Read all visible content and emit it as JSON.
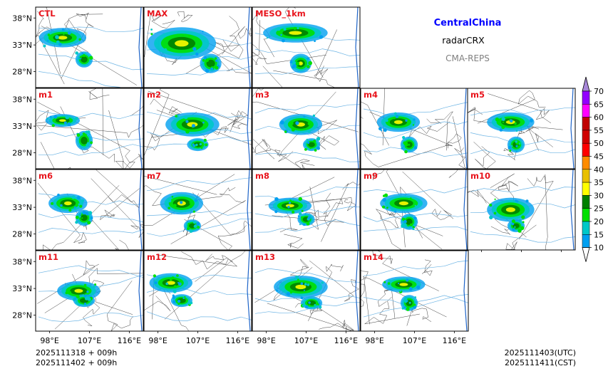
{
  "header": {
    "region": "CentralChina",
    "product": "radarCRX",
    "system": "CMA-REPS"
  },
  "footer": {
    "init_utc": "2025111318  +  009h",
    "init_cst": "2025111402  +  009h",
    "valid_utc": "2025111403(UTC)",
    "valid_cst": "2025111411(CST)"
  },
  "axes": {
    "lat_labels": [
      "38°N",
      "33°N",
      "28°N"
    ],
    "lon_labels": [
      "98°E",
      "107°E",
      "116°E"
    ]
  },
  "panels": [
    {
      "label": "CTL",
      "blobs": [
        [
          0.25,
          0.38,
          0.22,
          0.12,
          2
        ],
        [
          0.45,
          0.65,
          0.08,
          0.1,
          1
        ]
      ]
    },
    {
      "label": "MAX",
      "blobs": [
        [
          0.35,
          0.45,
          0.32,
          0.2,
          3
        ],
        [
          0.62,
          0.7,
          0.1,
          0.12,
          1
        ]
      ]
    },
    {
      "label": "MESO_1km",
      "blobs": [
        [
          0.4,
          0.32,
          0.3,
          0.12,
          3
        ],
        [
          0.45,
          0.7,
          0.1,
          0.12,
          2
        ]
      ]
    },
    {
      "label": "m1",
      "blobs": [
        [
          0.25,
          0.4,
          0.16,
          0.08,
          2
        ],
        [
          0.45,
          0.65,
          0.08,
          0.12,
          1
        ]
      ]
    },
    {
      "label": "m2",
      "blobs": [
        [
          0.45,
          0.45,
          0.25,
          0.15,
          2
        ],
        [
          0.5,
          0.7,
          0.1,
          0.08,
          1
        ]
      ]
    },
    {
      "label": "m3",
      "blobs": [
        [
          0.45,
          0.45,
          0.2,
          0.13,
          2
        ],
        [
          0.55,
          0.7,
          0.08,
          0.08,
          1
        ]
      ]
    },
    {
      "label": "m4",
      "blobs": [
        [
          0.35,
          0.42,
          0.2,
          0.12,
          2
        ],
        [
          0.45,
          0.7,
          0.08,
          0.1,
          1
        ]
      ]
    },
    {
      "label": "m5",
      "blobs": [
        [
          0.4,
          0.42,
          0.22,
          0.12,
          2
        ],
        [
          0.45,
          0.7,
          0.08,
          0.1,
          1
        ]
      ]
    },
    {
      "label": "m6",
      "blobs": [
        [
          0.3,
          0.42,
          0.18,
          0.12,
          2
        ],
        [
          0.45,
          0.6,
          0.08,
          0.1,
          1
        ]
      ]
    },
    {
      "label": "m7",
      "blobs": [
        [
          0.35,
          0.42,
          0.2,
          0.14,
          2
        ],
        [
          0.45,
          0.7,
          0.08,
          0.08,
          1
        ]
      ]
    },
    {
      "label": "m8",
      "blobs": [
        [
          0.35,
          0.45,
          0.2,
          0.1,
          2
        ],
        [
          0.5,
          0.62,
          0.08,
          0.08,
          1
        ]
      ]
    },
    {
      "label": "m9",
      "blobs": [
        [
          0.4,
          0.42,
          0.22,
          0.12,
          2
        ],
        [
          0.45,
          0.65,
          0.08,
          0.1,
          1
        ]
      ]
    },
    {
      "label": "m10",
      "blobs": [
        [
          0.4,
          0.5,
          0.22,
          0.15,
          2
        ],
        [
          0.45,
          0.7,
          0.08,
          0.08,
          1
        ]
      ]
    },
    {
      "label": "m11",
      "blobs": [
        [
          0.4,
          0.5,
          0.2,
          0.12,
          2
        ],
        [
          0.45,
          0.62,
          0.1,
          0.08,
          1
        ]
      ]
    },
    {
      "label": "m12",
      "blobs": [
        [
          0.25,
          0.4,
          0.2,
          0.12,
          2
        ],
        [
          0.35,
          0.62,
          0.1,
          0.08,
          1
        ]
      ]
    },
    {
      "label": "m13",
      "blobs": [
        [
          0.45,
          0.45,
          0.25,
          0.14,
          2
        ],
        [
          0.55,
          0.65,
          0.1,
          0.08,
          1
        ]
      ]
    },
    {
      "label": "m14",
      "blobs": [
        [
          0.4,
          0.42,
          0.2,
          0.1,
          2
        ],
        [
          0.45,
          0.65,
          0.08,
          0.1,
          1
        ]
      ]
    }
  ],
  "colorbar": {
    "levels": [
      "10",
      "15",
      "20",
      "25",
      "30",
      "35",
      "40",
      "45",
      "50",
      "55",
      "60",
      "65",
      "70"
    ],
    "colors": [
      "#00a0f0",
      "#00c8c8",
      "#00e000",
      "#008000",
      "#ffff00",
      "#e8c000",
      "#ff8c00",
      "#ff0000",
      "#d00000",
      "#c00000",
      "#ff00ff",
      "#9300ff",
      "#a888d8"
    ]
  }
}
